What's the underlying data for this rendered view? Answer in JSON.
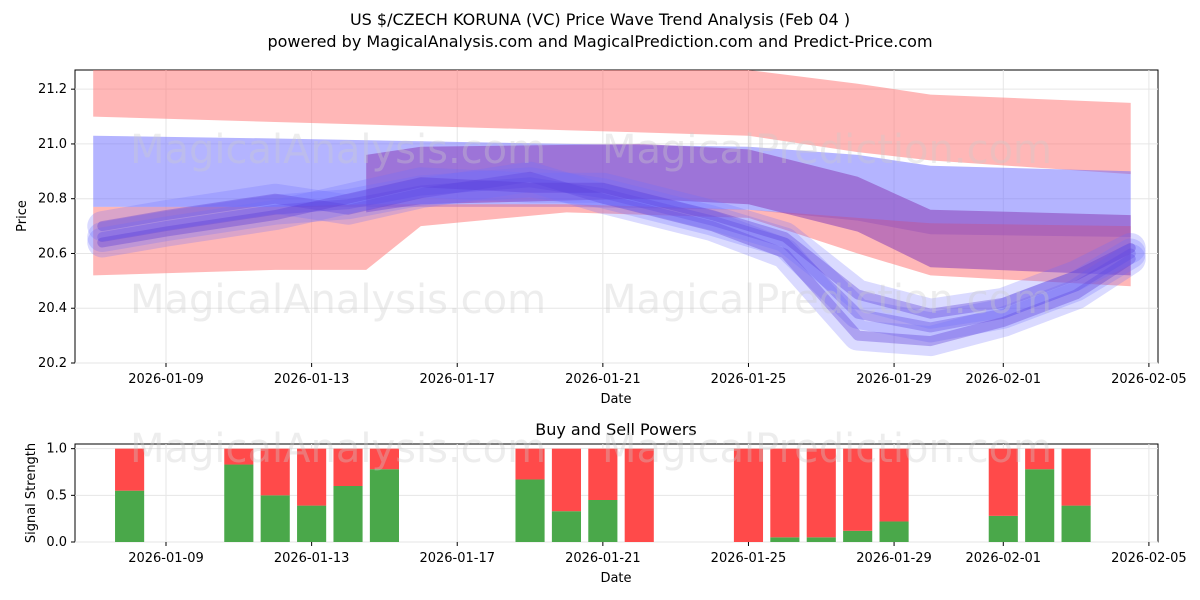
{
  "titles": {
    "line1": "US $/CZECH KORUNA (VC) Price Wave Trend Analysis (Feb 04 )",
    "line2": "powered by MagicalAnalysis.com and MagicalPrediction.com and Predict-Price.com"
  },
  "watermarks": {
    "left": "MagicalAnalysis.com",
    "right": "MagicalPrediction.com"
  },
  "colors": {
    "red_band": "#ff6f6f",
    "blue_band": "#6a6aff",
    "purple_band": "#8a3fb8",
    "buy": "#4aa84a",
    "sell": "#ff4a4a",
    "grid": "#e6e6e6"
  },
  "chart_data": [
    {
      "type": "area",
      "title": "",
      "xlabel": "Date",
      "ylabel": "Price",
      "ylim": [
        20.2,
        21.27
      ],
      "xlim": [
        "2026-01-06 12:00",
        "2026-02-05 06:00"
      ],
      "xticks": [
        "2026-01-09",
        "2026-01-13",
        "2026-01-17",
        "2026-01-21",
        "2026-01-25",
        "2026-01-29",
        "2026-02-01",
        "2026-02-05"
      ],
      "yticks": [
        20.2,
        20.4,
        20.6,
        20.8,
        21.0,
        21.2
      ],
      "grid": true,
      "bands": [
        {
          "name": "red-upper",
          "color": "red",
          "x": [
            "2026-01-07",
            "2026-01-12",
            "2026-01-20",
            "2026-01-25",
            "2026-01-28",
            "2026-01-30",
            "2026-02-04 12:00"
          ],
          "upper": [
            21.27,
            21.27,
            21.27,
            21.27,
            21.22,
            21.18,
            21.15
          ],
          "lower": [
            21.1,
            21.08,
            21.05,
            21.03,
            20.97,
            20.94,
            20.89
          ]
        },
        {
          "name": "blue-upper",
          "color": "blue",
          "x": [
            "2026-01-07",
            "2026-01-12",
            "2026-01-20",
            "2026-01-25",
            "2026-01-28",
            "2026-01-30",
            "2026-02-04 12:00"
          ],
          "upper": [
            21.03,
            21.02,
            21.0,
            20.99,
            20.96,
            20.92,
            20.9
          ],
          "lower": [
            20.77,
            20.77,
            20.77,
            20.76,
            20.72,
            20.67,
            20.66
          ]
        },
        {
          "name": "red-lower",
          "color": "red",
          "x": [
            "2026-01-07",
            "2026-01-12",
            "2026-01-14 12:00",
            "2026-01-16",
            "2026-01-20",
            "2026-01-25",
            "2026-01-28",
            "2026-01-30",
            "2026-02-04 12:00"
          ],
          "upper": [
            20.77,
            20.77,
            20.78,
            20.78,
            20.78,
            20.76,
            20.73,
            20.71,
            20.7
          ],
          "lower": [
            20.52,
            20.54,
            20.54,
            20.7,
            20.75,
            20.73,
            20.6,
            20.52,
            20.48
          ]
        },
        {
          "name": "purple-main",
          "color": "purple",
          "x": [
            "2026-01-14 12:00",
            "2026-01-16",
            "2026-01-22",
            "2026-01-25",
            "2026-01-28",
            "2026-01-30",
            "2026-02-04 12:00"
          ],
          "upper": [
            20.96,
            20.99,
            21.0,
            20.98,
            20.88,
            20.76,
            20.74
          ],
          "lower": [
            20.75,
            20.78,
            20.8,
            20.78,
            20.68,
            20.55,
            20.52
          ]
        }
      ],
      "wave_paths": [
        {
          "x": [
            "2026-01-07 06:00",
            "2026-01-09",
            "2026-01-12",
            "2026-01-14",
            "2026-01-16",
            "2026-01-19",
            "2026-01-21",
            "2026-01-24",
            "2026-01-26",
            "2026-01-28",
            "2026-01-30",
            "2026-02-01",
            "2026-02-03",
            "2026-02-04 12:00"
          ],
          "y": [
            20.66,
            20.7,
            20.76,
            20.78,
            20.83,
            20.86,
            20.82,
            20.72,
            20.64,
            20.38,
            20.33,
            20.38,
            20.48,
            20.6
          ]
        },
        {
          "x": [
            "2026-01-07 06:00",
            "2026-01-09",
            "2026-01-12",
            "2026-01-14",
            "2026-01-16",
            "2026-01-19",
            "2026-01-21",
            "2026-01-24",
            "2026-01-26",
            "2026-01-28",
            "2026-01-30",
            "2026-02-01",
            "2026-02-03",
            "2026-02-04 12:00"
          ],
          "y": [
            20.7,
            20.74,
            20.8,
            20.76,
            20.82,
            20.88,
            20.8,
            20.7,
            20.6,
            20.3,
            20.28,
            20.35,
            20.45,
            20.58
          ]
        },
        {
          "x": [
            "2026-01-07 06:00",
            "2026-01-09",
            "2026-01-12",
            "2026-01-14",
            "2026-01-16",
            "2026-01-19",
            "2026-01-21",
            "2026-01-24",
            "2026-01-26",
            "2026-01-28",
            "2026-01-30",
            "2026-02-01",
            "2026-02-03",
            "2026-02-04 12:00"
          ],
          "y": [
            20.64,
            20.68,
            20.74,
            20.8,
            20.86,
            20.84,
            20.84,
            20.74,
            20.66,
            20.45,
            20.38,
            20.42,
            20.52,
            20.62
          ]
        }
      ]
    },
    {
      "type": "bar",
      "title": "Buy and Sell Powers",
      "xlabel": "Date",
      "ylabel": "Signal Strength",
      "ylim": [
        0,
        1.05
      ],
      "yticks": [
        0.0,
        0.5,
        1.0
      ],
      "xticks": [
        "2026-01-09",
        "2026-01-13",
        "2026-01-17",
        "2026-01-21",
        "2026-01-25",
        "2026-01-29",
        "2026-02-01",
        "2026-02-05"
      ],
      "categories": [
        "2026-01-08",
        "2026-01-11",
        "2026-01-12",
        "2026-01-13",
        "2026-01-14",
        "2026-01-15",
        "2026-01-19",
        "2026-01-20",
        "2026-01-21",
        "2026-01-22",
        "2026-01-25",
        "2026-01-26",
        "2026-01-27",
        "2026-01-28",
        "2026-01-29",
        "2026-02-01",
        "2026-02-02",
        "2026-02-03"
      ],
      "series": [
        {
          "name": "Buy",
          "values": [
            0.55,
            0.83,
            0.5,
            0.39,
            0.6,
            0.78,
            0.67,
            0.33,
            0.45,
            0.0,
            0.0,
            0.05,
            0.05,
            0.12,
            0.22,
            0.28,
            0.78,
            0.39
          ]
        },
        {
          "name": "Sell",
          "values": [
            0.45,
            0.17,
            0.5,
            0.61,
            0.4,
            0.22,
            0.33,
            0.67,
            0.55,
            1.0,
            1.0,
            0.95,
            0.95,
            0.88,
            0.78,
            0.72,
            0.22,
            0.61
          ]
        }
      ]
    }
  ]
}
